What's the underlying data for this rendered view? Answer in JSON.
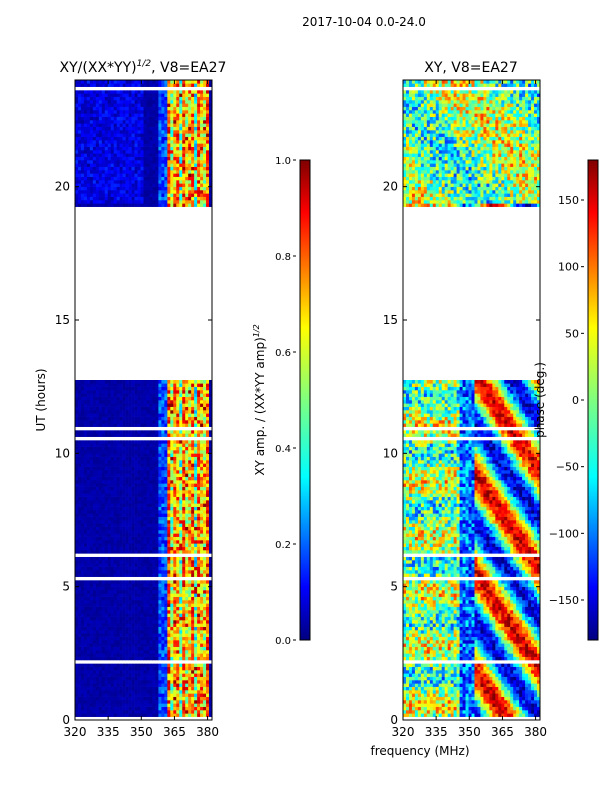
{
  "suptitle": "2017-10-04 0.0-24.0",
  "colors": {
    "jet": [
      "#00007f",
      "#0000ff",
      "#007fff",
      "#00ffff",
      "#7fff7f",
      "#ffff00",
      "#ff7f00",
      "#ff0000",
      "#7f0000"
    ]
  },
  "chart_data": [
    {
      "type": "heatmap",
      "title": "XY/(XX*YY)^1/2, V8=EA27",
      "title_main": "XY/(XX*YY)",
      "title_sup": "1/2",
      "title_tail": ", V8=EA27",
      "xlabel": "",
      "ylabel": "UT (hours)",
      "xlim": [
        320,
        382
      ],
      "ylim": [
        0,
        24
      ],
      "xticks": [
        320,
        335,
        350,
        365,
        380
      ],
      "yticks": [
        0,
        5,
        10,
        15,
        20
      ],
      "quantity": "normalized amplitude",
      "data_gap_hours": [
        19.3,
        12.8
      ],
      "notes": "Mostly low (~0.0-0.1) across band; elevated values (0.3-0.9) in channels ~360-380 MHz; no data between ~12.8 and ~19.3 UT."
    },
    {
      "type": "heatmap",
      "title": "XY, V8=EA27",
      "xlabel": "frequency (MHz)",
      "ylabel": "",
      "xlim": [
        320,
        382
      ],
      "ylim": [
        0,
        24
      ],
      "xticks": [
        320,
        335,
        350,
        365,
        380
      ],
      "yticks": [
        0,
        5,
        10,
        15,
        20
      ],
      "quantity": "phase (deg.)",
      "data_gap_hours": [
        19.3,
        12.8
      ],
      "notes": "Phase varies across frequency and time spanning -180 to 180 deg; no data between ~12.8 and ~19.3 UT."
    }
  ],
  "colorbars": [
    {
      "label": "XY amp. / (XX*YY amp)^1/2",
      "label_main": "XY amp. / (XX*YY amp)",
      "label_sup": "1/2",
      "range": [
        0.0,
        1.0
      ],
      "ticks": [
        "0.0",
        "0.2",
        "0.4",
        "0.6",
        "0.8",
        "1.0"
      ],
      "tick_values": [
        0.0,
        0.2,
        0.4,
        0.6,
        0.8,
        1.0
      ]
    },
    {
      "label": "phase (deg.)",
      "range": [
        -180,
        180
      ],
      "ticks": [
        "−150",
        "−100",
        "−50",
        "0",
        "50",
        "100",
        "150"
      ],
      "tick_values": [
        -150,
        -100,
        -50,
        0,
        50,
        100,
        150
      ]
    }
  ]
}
